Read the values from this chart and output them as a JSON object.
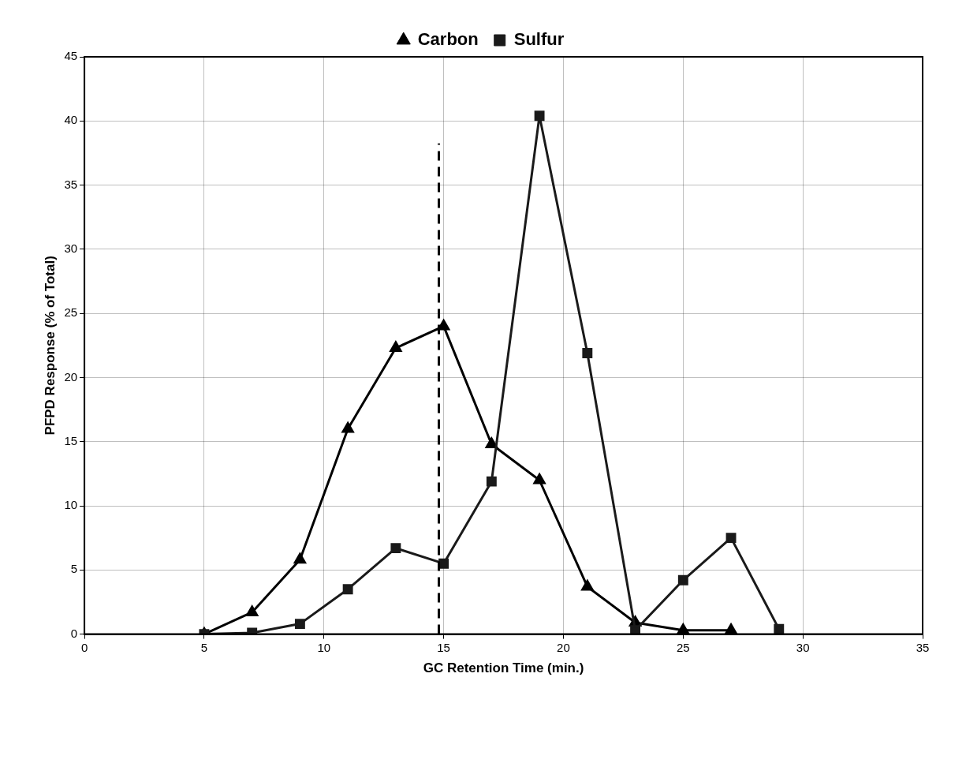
{
  "chart_data": {
    "type": "line",
    "xlabel": "GC Retention Time (min.)",
    "ylabel": "PFPD Response (% of Total)",
    "xlim": [
      0,
      35
    ],
    "xticks": [
      0,
      5,
      10,
      15,
      20,
      25,
      30,
      35
    ],
    "ylim": [
      0,
      45
    ],
    "yticks": [
      0,
      5,
      10,
      15,
      20,
      25,
      30,
      35,
      40,
      45
    ],
    "grid": true,
    "legend": "top",
    "line_style": "solid",
    "series": [
      {
        "name": "Carbon",
        "color": "#000000",
        "marker": "triangle",
        "x": [
          5,
          7,
          9,
          11,
          13,
          15,
          17,
          19,
          21,
          23,
          25,
          27
        ],
        "values": [
          0,
          1.7,
          5.8,
          16.0,
          22.3,
          24.0,
          14.8,
          12.0,
          3.7,
          0.9,
          0.3,
          0.3
        ]
      },
      {
        "name": "Sulfur",
        "color": "#1a1a1a",
        "marker": "square",
        "x": [
          5,
          7,
          9,
          11,
          13,
          15,
          17,
          19,
          21,
          23,
          25,
          27,
          29
        ],
        "values": [
          0,
          0.1,
          0.8,
          3.5,
          6.7,
          5.5,
          11.9,
          40.4,
          21.9,
          0.3,
          4.2,
          7.5,
          0.4
        ]
      }
    ],
    "ref_lines": [
      {
        "axis": "x",
        "value": 14.8,
        "line_style": "dashed",
        "color": "#000000"
      }
    ]
  }
}
